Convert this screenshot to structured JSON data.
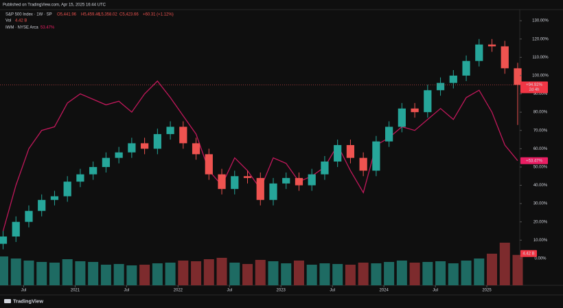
{
  "header": {
    "published": "Published on TradingView.com, Apr 15, 2025 16:44 UTC"
  },
  "chart_data": {
    "type": "candlestick",
    "title": "S&P 500 Index · 1W · SP",
    "ohlc_legend": {
      "open": "O5,441.96",
      "high": "H5,459.46",
      "low": "L5,358.02",
      "close": "C5,423.66",
      "change": "+60.31 (+1.12%)"
    },
    "x": [
      2020.3,
      2020.425,
      2020.55,
      2020.675,
      2020.8,
      2020.925,
      2021.05,
      2021.175,
      2021.3,
      2021.425,
      2021.55,
      2021.675,
      2021.8,
      2021.925,
      2022.05,
      2022.175,
      2022.3,
      2022.425,
      2022.55,
      2022.675,
      2022.8,
      2022.925,
      2023.05,
      2023.175,
      2023.3,
      2023.425,
      2023.55,
      2023.675,
      2023.8,
      2023.925,
      2024.05,
      2024.175,
      2024.3,
      2024.425,
      2024.55,
      2024.675,
      2024.8,
      2024.925,
      2025.05,
      2025.175,
      2025.3
    ],
    "open": [
      8,
      12,
      20,
      26,
      32,
      34,
      42,
      46,
      50,
      55,
      58,
      63,
      60,
      68,
      72,
      63,
      57,
      46,
      38,
      45,
      44,
      32,
      41,
      44,
      40,
      46,
      53,
      62,
      55,
      48,
      64,
      72,
      82,
      80,
      92,
      96,
      100,
      108,
      117,
      116,
      104
    ],
    "high": [
      15,
      23,
      29,
      35,
      37,
      45,
      49,
      53,
      58,
      61,
      66,
      66,
      71,
      75,
      75,
      66,
      60,
      49,
      48,
      48,
      47,
      44,
      47,
      47,
      49,
      56,
      65,
      65,
      58,
      67,
      75,
      85,
      85,
      95,
      99,
      103,
      111,
      120,
      120,
      119,
      107
    ],
    "low": [
      5,
      9,
      17,
      23,
      29,
      31,
      39,
      43,
      47,
      52,
      55,
      57,
      57,
      65,
      60,
      54,
      43,
      35,
      35,
      41,
      29,
      29,
      38,
      37,
      37,
      43,
      50,
      52,
      45,
      45,
      61,
      69,
      77,
      77,
      89,
      93,
      97,
      105,
      113,
      101,
      73
    ],
    "close": [
      12,
      20,
      26,
      32,
      34,
      42,
      46,
      50,
      55,
      58,
      63,
      60,
      68,
      72,
      63,
      57,
      46,
      38,
      45,
      44,
      32,
      41,
      44,
      40,
      46,
      53,
      62,
      55,
      48,
      64,
      72,
      82,
      80,
      92,
      96,
      100,
      108,
      117,
      116,
      104,
      94.92
    ],
    "up_color": "#26a69a",
    "down_color": "#ef5350",
    "last_label": "+94.92%",
    "countdown": "2d 4h",
    "volume": {
      "name": "Vol",
      "label": "4.42 B",
      "up_color": "#1e6b63",
      "down_color": "#7d2b2d",
      "values": [
        4.2,
        3.9,
        3.6,
        3.4,
        3.3,
        3.8,
        3.5,
        3.4,
        3.0,
        3.1,
        2.9,
        3.0,
        3.2,
        3.3,
        3.6,
        3.5,
        3.8,
        4.0,
        3.3,
        3.1,
        3.7,
        3.5,
        3.2,
        3.6,
        3.0,
        3.2,
        3.1,
        3.0,
        3.3,
        3.2,
        3.4,
        3.6,
        3.3,
        3.4,
        3.5,
        3.2,
        3.6,
        3.9,
        4.6,
        6.2,
        4.42
      ]
    },
    "series": [
      {
        "name": "IWM · NYSE Arca",
        "value_label": "53.47%",
        "last_label": "+53.47%",
        "color": "#c2185b",
        "values": [
          15,
          40,
          60,
          70,
          72,
          85,
          90,
          87,
          84,
          86,
          80,
          90,
          97,
          88,
          78,
          68,
          48,
          40,
          55,
          48,
          38,
          55,
          52,
          42,
          45,
          50,
          62,
          48,
          36,
          62,
          66,
          72,
          70,
          76,
          82,
          76,
          88,
          92,
          80,
          62,
          53.47
        ]
      }
    ],
    "xlim": [
      2020.27,
      2025.32
    ],
    "xticks": [
      {
        "value": 2020.5,
        "label": "Jul"
      },
      {
        "value": 2021,
        "label": "2021"
      },
      {
        "value": 2021.5,
        "label": "Jul"
      },
      {
        "value": 2022,
        "label": "2022"
      },
      {
        "value": 2022.5,
        "label": "Jul"
      },
      {
        "value": 2023,
        "label": "2023"
      },
      {
        "value": 2023.5,
        "label": "Jul"
      },
      {
        "value": 2024,
        "label": "2024"
      },
      {
        "value": 2024.5,
        "label": "Jul"
      },
      {
        "value": 2025,
        "label": "2025"
      }
    ],
    "ylim": [
      -14.7,
      135.7
    ],
    "yticks": [
      {
        "value": 0,
        "label": "0.00%"
      },
      {
        "value": 10,
        "label": "10.00%"
      },
      {
        "value": 20,
        "label": "20.00%"
      },
      {
        "value": 30,
        "label": "30.00%"
      },
      {
        "value": 40,
        "label": "40.00%"
      },
      {
        "value": 50,
        "label": "50.00%"
      },
      {
        "value": 60,
        "label": "60.00%"
      },
      {
        "value": 70,
        "label": "70.00%"
      },
      {
        "value": 80,
        "label": "80.00%"
      },
      {
        "value": 90,
        "label": "90.00%"
      },
      {
        "value": 100,
        "label": "100.00%"
      },
      {
        "value": 110,
        "label": "110.00%"
      },
      {
        "value": 120,
        "label": "120.00%"
      },
      {
        "value": 130,
        "label": "130.00%"
      }
    ]
  },
  "footer": {
    "brand": "TradingView"
  }
}
